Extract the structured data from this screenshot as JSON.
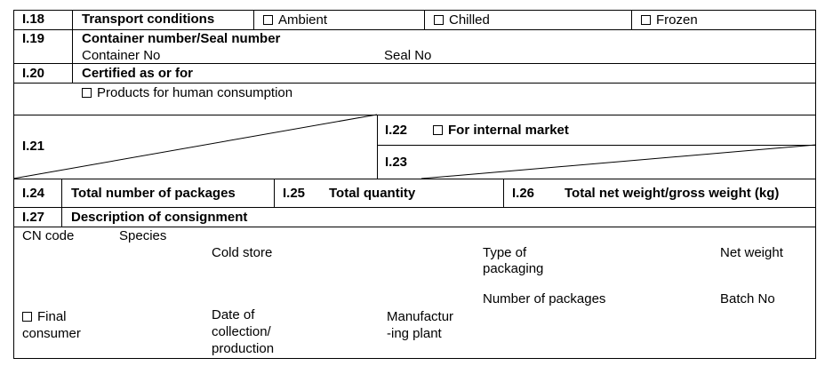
{
  "transport": {
    "code": "I.18",
    "label": "Transport conditions",
    "options": [
      "Ambient",
      "Chilled",
      "Frozen"
    ]
  },
  "container": {
    "code": "I.19",
    "label": "Container number/Seal number",
    "container_no": "Container No",
    "seal_no": "Seal No"
  },
  "certified": {
    "code": "I.20",
    "label": "Certified as or for",
    "option": "Products for human consumption"
  },
  "box21": {
    "code": "I.21"
  },
  "box22": {
    "code": "I.22",
    "label": "For internal market"
  },
  "box23": {
    "code": "I.23"
  },
  "packages": {
    "code": "I.24",
    "label": "Total number of packages"
  },
  "quantity": {
    "code": "I.25",
    "label": "Total quantity"
  },
  "weight": {
    "code": "I.26",
    "label": "Total net weight/gross weight (kg)"
  },
  "description": {
    "code": "I.27",
    "label": "Description of consignment",
    "cn_code": "CN code",
    "species": "Species",
    "cold_store": "Cold store",
    "type_of_packaging_1": "Type of",
    "type_of_packaging_2": "packaging",
    "net_weight": "Net weight",
    "number_of_packages": "Number of packages",
    "batch_no": "Batch No",
    "final_consumer_1": "Final",
    "final_consumer_2": "consumer",
    "date_1": "Date of",
    "date_2": "collection/",
    "date_3": "production",
    "plant_1": "Manufactur",
    "plant_2": "-ing plant"
  }
}
